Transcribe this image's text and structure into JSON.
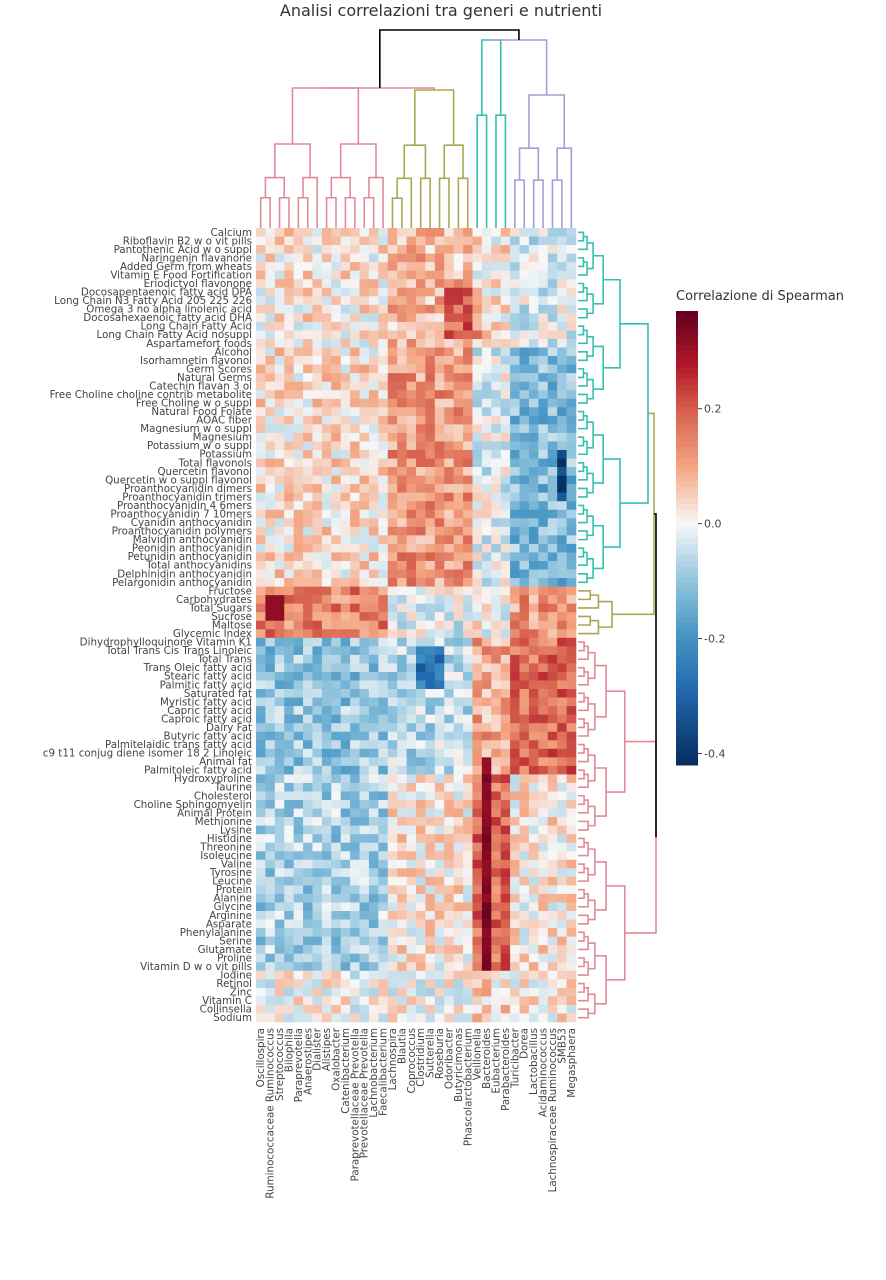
{
  "chart_data": {
    "type": "heatmap",
    "title": "Analisi correlazioni tra generi e nutrienti",
    "colorbar": {
      "title": "Correlazione di Spearman",
      "ticks": [
        0.2,
        0.0,
        -0.2,
        -0.4
      ],
      "tick_labels": [
        "0.2",
        "0.0",
        "-0.2",
        "-0.4"
      ],
      "range": [
        -0.42,
        0.37
      ],
      "colors": [
        "#053061",
        "#2166ac",
        "#4393c3",
        "#92c5de",
        "#f7f7f7",
        "#f4a582",
        "#d6604d",
        "#b2182b",
        "#67001f"
      ]
    },
    "columns": [
      "Oscillospira",
      "Ruminococcaceae Ruminococcus",
      "Streptococcus",
      "Bilophila",
      "Paraprevotella",
      "Anaerostipes",
      "Dialister",
      "Alistipes",
      "Oxalobacter",
      "Catenibacterium",
      "Paraprevotellaceae Prevotella",
      "Prevotellaceae Prevotella",
      "Lachnobacterium",
      "Faecalibacterium",
      "Lachnospira",
      "Blautia",
      "Coprococcus",
      "Clostridium",
      "Sutterella",
      "Roseburia",
      "Odoribacter",
      "Butyricimonas",
      "Phascolarctobacterium",
      "Veillonella",
      "Bacteroides",
      "Eubacterium",
      "Parabacteroides",
      "Turicibacter",
      "Dorea",
      "Lactobacillus",
      "Acidaminococcus",
      "Lachnospiraceae Ruminococcus",
      "SMB53",
      "Megasphaera"
    ],
    "rows": [
      "Calcium",
      "Riboflavin B2 w o vit  pills",
      "Pantothenic Acid w o suppl",
      "Naringenin  flavanone",
      "Added Germ from wheats",
      "Vitamin E  Food Fortification",
      "Eriodictyol  flavonone",
      "Docosapentaenoic fatty acid  DPA",
      "Long Chain N3 Fatty Acid 205 225 226",
      "Omega 3 no alpha linolenic acid",
      "Docosahexaenoic fatty acid  DHA",
      "Long Chain Fatty Acid",
      "Long Chain Fatty Acid nosuppl",
      "Aspartamefort  foods",
      "Alcohol",
      "Isorhamnetin  flavonol",
      "Germ Scores",
      "Natural Germs",
      "Catechin  flavan 3 ol",
      "Free Choline  choline contrib  metabolite",
      "Free Choline w o suppl",
      "Natural Food Folate",
      "AOAC fiber",
      "Magnesium w o suppl",
      "Magnesium",
      "Potassium w o suppl",
      "Potassium",
      "Total flavonols",
      "Quercetin  flavonol",
      "Quercetin w o suppl  flavonol",
      "Proanthocyanidin  dimers",
      "Proanthocyanidin  trimers",
      "Proanthocyanidin  4 6mers",
      "Proanthocyanidin  7 10mers",
      "Cyanidin  anthocyanidin",
      "Proanthocyanidin  polymers",
      "Malvidin  anthocyanidin",
      "Peonidin  anthocyanidin",
      "Petunidin  anthocyanidin",
      "Total anthocyanidins",
      "Delphinidin  anthocyanidin",
      "Pelargonidin  anthocyanidin",
      "Fructose",
      "Carbohydrates",
      "Total Sugars",
      "Sucrose",
      "Maltose",
      "Glycemic Index",
      "Dihydrophylloquinone Vitamin K1",
      "Total Trans Cis Trans Linoleic",
      "Total Trans",
      "Trans Oleic fatty acid",
      "Stearic fatty acid",
      "Palmitic fatty acid",
      "Saturated fat",
      "Myristic fatty acid",
      "Capric fatty acid",
      "Caproic fatty acid",
      "Dairy Fat",
      "Butyric fatty acid",
      "Palmitelaidic trans fatty acid",
      "c9 t11 conjug diene isomer 18 2 Linoleic",
      "Animal fat",
      "Palmitoleic fatty acid",
      "Hydroxyproline",
      "Taurine",
      "Cholesterol",
      "Choline  Sphingomyelin",
      "Animal Protein",
      "Methionine",
      "Lysine",
      "Histidine",
      "Threonine",
      "Isoleucine",
      "Valine",
      "Tyrosine",
      "Leucine",
      "Protein",
      "Alanine",
      "Glycine",
      "Arginine",
      "Asparate",
      "Phenylalanine",
      "Serine",
      "Glutamate",
      "Proline",
      "Vitamin D w o vit  pills",
      "Iodine",
      "Retinol",
      "Zinc",
      "Vitamin C",
      "Collinsella",
      "Sodium"
    ],
    "xlabel": "",
    "ylabel": "",
    "dendrogram_colors": {
      "cluster_1": "#e08a99",
      "cluster_2": "#a8a855",
      "cluster_3": "#33c1b0",
      "cluster_4": "#a99ad9",
      "root": "#000000"
    }
  }
}
